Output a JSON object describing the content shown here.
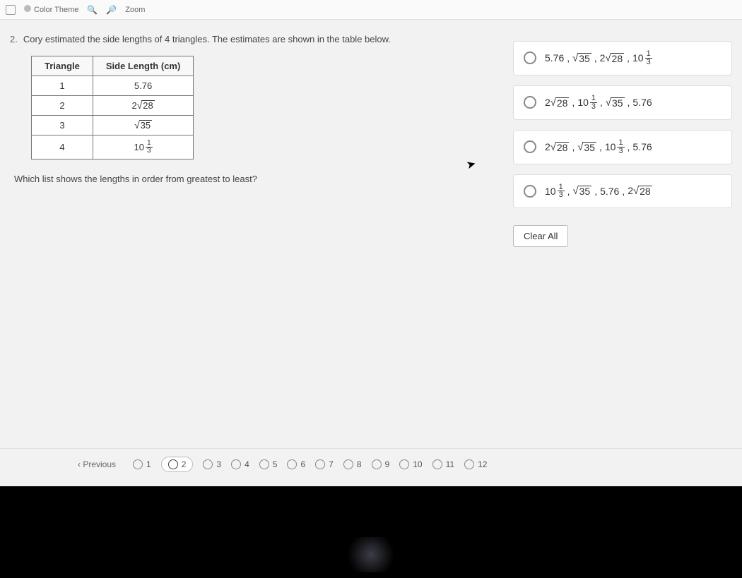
{
  "toolbar": {
    "color_theme_label": "Color Theme",
    "zoom_label": "Zoom"
  },
  "question": {
    "number": "2.",
    "stem": "Cory estimated the side lengths of 4 triangles. The estimates are shown in the table below.",
    "sub": "Which list shows the lengths in order from greatest to least?"
  },
  "table": {
    "headers": [
      "Triangle",
      "Side Length (cm)"
    ],
    "rows": [
      {
        "triangle": "1",
        "value": {
          "type": "decimal",
          "text": "5.76"
        }
      },
      {
        "triangle": "2",
        "value": {
          "type": "coef_sqrt",
          "coef": "2",
          "radicand": "28"
        }
      },
      {
        "triangle": "3",
        "value": {
          "type": "sqrt",
          "radicand": "35"
        }
      },
      {
        "triangle": "4",
        "value": {
          "type": "mixed",
          "whole": "10",
          "num": "1",
          "den": "3"
        }
      }
    ]
  },
  "options": [
    {
      "id": "A",
      "seq": [
        {
          "type": "decimal",
          "text": "5.76"
        },
        {
          "type": "sqrt",
          "radicand": "35"
        },
        {
          "type": "coef_sqrt",
          "coef": "2",
          "radicand": "28"
        },
        {
          "type": "mixed",
          "whole": "10",
          "num": "1",
          "den": "3"
        }
      ]
    },
    {
      "id": "B",
      "seq": [
        {
          "type": "coef_sqrt",
          "coef": "2",
          "radicand": "28"
        },
        {
          "type": "mixed",
          "whole": "10",
          "num": "1",
          "den": "3"
        },
        {
          "type": "sqrt",
          "radicand": "35"
        },
        {
          "type": "decimal",
          "text": "5.76"
        }
      ]
    },
    {
      "id": "C",
      "seq": [
        {
          "type": "coef_sqrt",
          "coef": "2",
          "radicand": "28"
        },
        {
          "type": "sqrt",
          "radicand": "35"
        },
        {
          "type": "mixed",
          "whole": "10",
          "num": "1",
          "den": "3"
        },
        {
          "type": "decimal",
          "text": "5.76"
        }
      ]
    },
    {
      "id": "D",
      "seq": [
        {
          "type": "mixed",
          "whole": "10",
          "num": "1",
          "den": "3"
        },
        {
          "type": "sqrt",
          "radicand": "35"
        },
        {
          "type": "decimal",
          "text": "5.76"
        },
        {
          "type": "coef_sqrt",
          "coef": "2",
          "radicand": "28"
        }
      ]
    }
  ],
  "clear_all_label": "Clear All",
  "pager": {
    "previous_label": "Previous",
    "items": [
      "1",
      "2",
      "3",
      "4",
      "5",
      "6",
      "7",
      "8",
      "9",
      "10",
      "11",
      "12"
    ],
    "current": "2"
  },
  "colors": {
    "page_bg": "#f2f2f2",
    "card_bg": "#ffffff",
    "border": "#dddddd",
    "text": "#333333",
    "black_band": "#000000"
  }
}
